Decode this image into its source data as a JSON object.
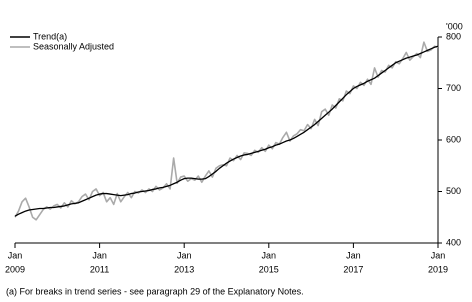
{
  "chart_data": {
    "type": "line",
    "footnote": "(a) For breaks in trend series - see paragraph 29 of the Explanatory Notes.",
    "y_unit": "'000",
    "xlim": [
      "2009-01",
      "2019-01"
    ],
    "xticks": [
      {
        "value": "2009-01",
        "label": [
          "Jan",
          "2009"
        ]
      },
      {
        "value": "2011-01",
        "label": [
          "Jan",
          "2011"
        ]
      },
      {
        "value": "2013-01",
        "label": [
          "Jan",
          "2013"
        ]
      },
      {
        "value": "2015-01",
        "label": [
          "Jan",
          "2015"
        ]
      },
      {
        "value": "2017-01",
        "label": [
          "Jan",
          "2017"
        ]
      },
      {
        "value": "2019-01",
        "label": [
          "Jan",
          "2019"
        ]
      }
    ],
    "ylim": [
      400,
      800
    ],
    "yticks": [
      400,
      500,
      600,
      700,
      800
    ],
    "legend": "top-left",
    "x_start": "2009-01",
    "series": [
      {
        "name": "Trend(a)",
        "color": "#000000",
        "values": [
          452,
          456,
          459,
          462,
          464,
          465,
          466,
          467,
          467,
          468,
          469,
          469,
          470,
          471,
          472,
          474,
          476,
          477,
          478,
          481,
          484,
          487,
          490,
          493,
          495,
          496,
          496,
          495,
          494,
          493,
          492,
          493,
          494,
          496,
          497,
          499,
          500,
          501,
          502,
          504,
          505,
          507,
          508,
          510,
          512,
          515,
          518,
          522,
          525,
          526,
          526,
          525,
          524,
          524,
          525,
          529,
          534,
          539,
          545,
          550,
          555,
          559,
          563,
          566,
          569,
          571,
          572,
          574,
          576,
          578,
          580,
          582,
          585,
          587,
          590,
          592,
          595,
          598,
          600,
          603,
          607,
          611,
          615,
          620,
          625,
          630,
          636,
          642,
          648,
          654,
          660,
          667,
          674,
          681,
          688,
          694,
          700,
          704,
          707,
          710,
          714,
          717,
          720,
          725,
          730,
          735,
          740,
          745,
          750,
          753,
          756,
          759,
          761,
          763,
          765,
          768,
          771,
          774,
          777,
          780,
          782
        ]
      },
      {
        "name": "Seasonally Adjusted",
        "color": "#aaaaaa",
        "values": [
          450,
          462,
          480,
          487,
          470,
          450,
          445,
          455,
          465,
          470,
          466,
          472,
          475,
          468,
          478,
          470,
          482,
          476,
          480,
          490,
          495,
          484,
          500,
          505,
          492,
          498,
          480,
          488,
          475,
          496,
          480,
          490,
          498,
          488,
          500,
          497,
          503,
          498,
          505,
          500,
          510,
          503,
          507,
          515,
          505,
          565,
          516,
          528,
          530,
          520,
          525,
          522,
          530,
          518,
          530,
          540,
          528,
          545,
          550,
          552,
          550,
          565,
          560,
          570,
          562,
          575,
          574,
          570,
          580,
          576,
          585,
          578,
          590,
          583,
          595,
          592,
          605,
          615,
          598,
          608,
          612,
          620,
          618,
          630,
          622,
          640,
          628,
          655,
          660,
          648,
          668,
          662,
          680,
          676,
          695,
          690,
          705,
          700,
          712,
          706,
          718,
          708,
          740,
          722,
          735,
          732,
          745,
          740,
          752,
          748,
          758,
          770,
          755,
          762,
          768,
          760,
          790,
          772,
          775,
          782,
          780
        ]
      }
    ]
  }
}
